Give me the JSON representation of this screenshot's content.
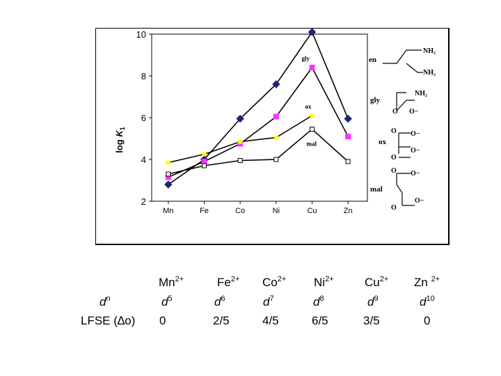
{
  "chart_data": {
    "type": "line",
    "categories": [
      "Mn",
      "Fe",
      "Co",
      "Ni",
      "Cu",
      "Zn"
    ],
    "ylabel": "log K₁",
    "ylabel_main": "log ",
    "ylabel_var": "K",
    "ylabel_sub": "1",
    "ylim": [
      2,
      10
    ],
    "yticks": [
      "2",
      "4",
      "6",
      "8",
      "10"
    ],
    "grid": false,
    "series": [
      {
        "name": "en",
        "color": "#1a237e",
        "marker": "diamond",
        "values": [
          2.8,
          4.0,
          5.95,
          7.6,
          10.1,
          5.95
        ]
      },
      {
        "name": "gly",
        "color": "#ff33ff",
        "marker": "square",
        "values": [
          3.15,
          3.9,
          4.75,
          6.05,
          8.4,
          5.1
        ]
      },
      {
        "name": "ox",
        "color": "#ffff00",
        "marker": "square-small",
        "values": [
          3.85,
          4.25,
          4.85,
          5.05,
          6.1,
          null
        ]
      },
      {
        "name": "mal",
        "color": "#ffffff",
        "marker": "square-open",
        "values": [
          3.3,
          3.7,
          3.95,
          4.0,
          5.45,
          3.9
        ]
      }
    ],
    "annotations": {
      "struct_en_nh2_top": "NH₂",
      "struct_en_nh2_bottom": "NH₂",
      "struct_gly_nh2": "NH₂",
      "struct_o_minus": "O−",
      "struct_o": "O"
    }
  },
  "table": {
    "ions": [
      {
        "symbol": "Mn",
        "charge": "2+"
      },
      {
        "symbol": "Fe",
        "charge": "2+"
      },
      {
        "symbol": "Co",
        "charge": "2+"
      },
      {
        "symbol": "Ni",
        "charge": "2+"
      },
      {
        "symbol": "Cu",
        "charge": "2+"
      },
      {
        "symbol": "Zn ",
        "charge": "2+"
      }
    ],
    "dn_label": {
      "base": "d",
      "exp": "n"
    },
    "d_counts": [
      "5",
      "6",
      "7",
      "8",
      "9",
      "10"
    ],
    "d_letter": "d",
    "lfse_label": "LFSE (∆o)",
    "lfse_values": [
      "0",
      "2/5",
      "4/5",
      "6/5",
      "3/5",
      "0"
    ]
  }
}
